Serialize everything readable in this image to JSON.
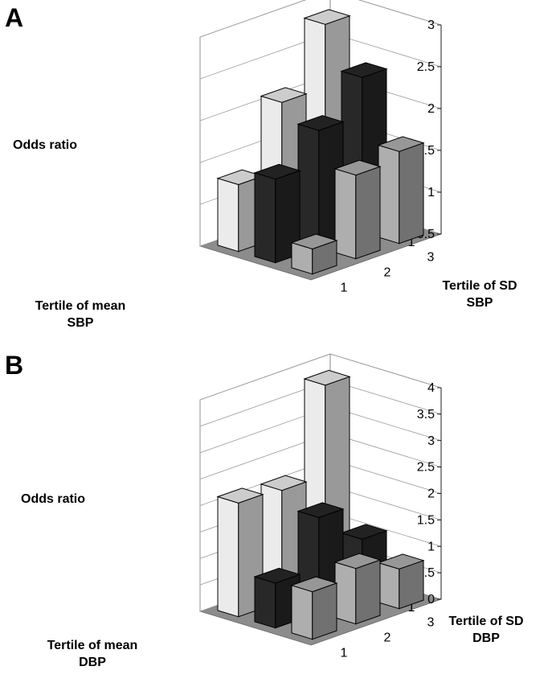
{
  "chart_data": [
    {
      "panel": "A",
      "type": "bar3d",
      "zlabel": "Odds ratio",
      "zlim": [
        0.5,
        3
      ],
      "zticks": [
        "0.5",
        "1",
        "1.5",
        "2",
        "2.5",
        "3"
      ],
      "rows_label": "Tertile of mean SBP",
      "cols_label": "Tertile of SD SBP",
      "rows": [
        "1",
        "2",
        "3"
      ],
      "cols": [
        "1",
        "2",
        "3"
      ],
      "series": [
        {
          "row": "3",
          "values": [
            1.3,
            2.1,
            2.85
          ]
        },
        {
          "row": "2",
          "values": [
            1.5,
            1.9,
            2.35
          ]
        },
        {
          "row": "1",
          "values": [
            0.8,
            1.5,
            1.6
          ]
        }
      ]
    },
    {
      "panel": "B",
      "type": "bar3d",
      "zlabel": "Odds ratio",
      "zlim": [
        0,
        4
      ],
      "zticks": [
        "0",
        "0.5",
        "1",
        "1.5",
        "2",
        "2.5",
        "3",
        "3.5",
        "4"
      ],
      "rows_label": "Tertile of mean DBP",
      "cols_label": "Tertile of SD DBP",
      "rows": [
        "1",
        "2",
        "3"
      ],
      "cols": [
        "1",
        "2",
        "3"
      ],
      "series": [
        {
          "row": "3",
          "values": [
            2.15,
            2.1,
            3.8
          ]
        },
        {
          "row": "2",
          "values": [
            0.85,
            1.8,
            1.1
          ]
        },
        {
          "row": "1",
          "values": [
            0.9,
            1.05,
            0.75
          ]
        }
      ]
    }
  ],
  "colors": {
    "row_1": "#bdbdbd",
    "row_2": "#2b2b2b",
    "row_3": "#ffffff",
    "floor": "#8c8c8c",
    "grid": "#9a9a9a"
  }
}
